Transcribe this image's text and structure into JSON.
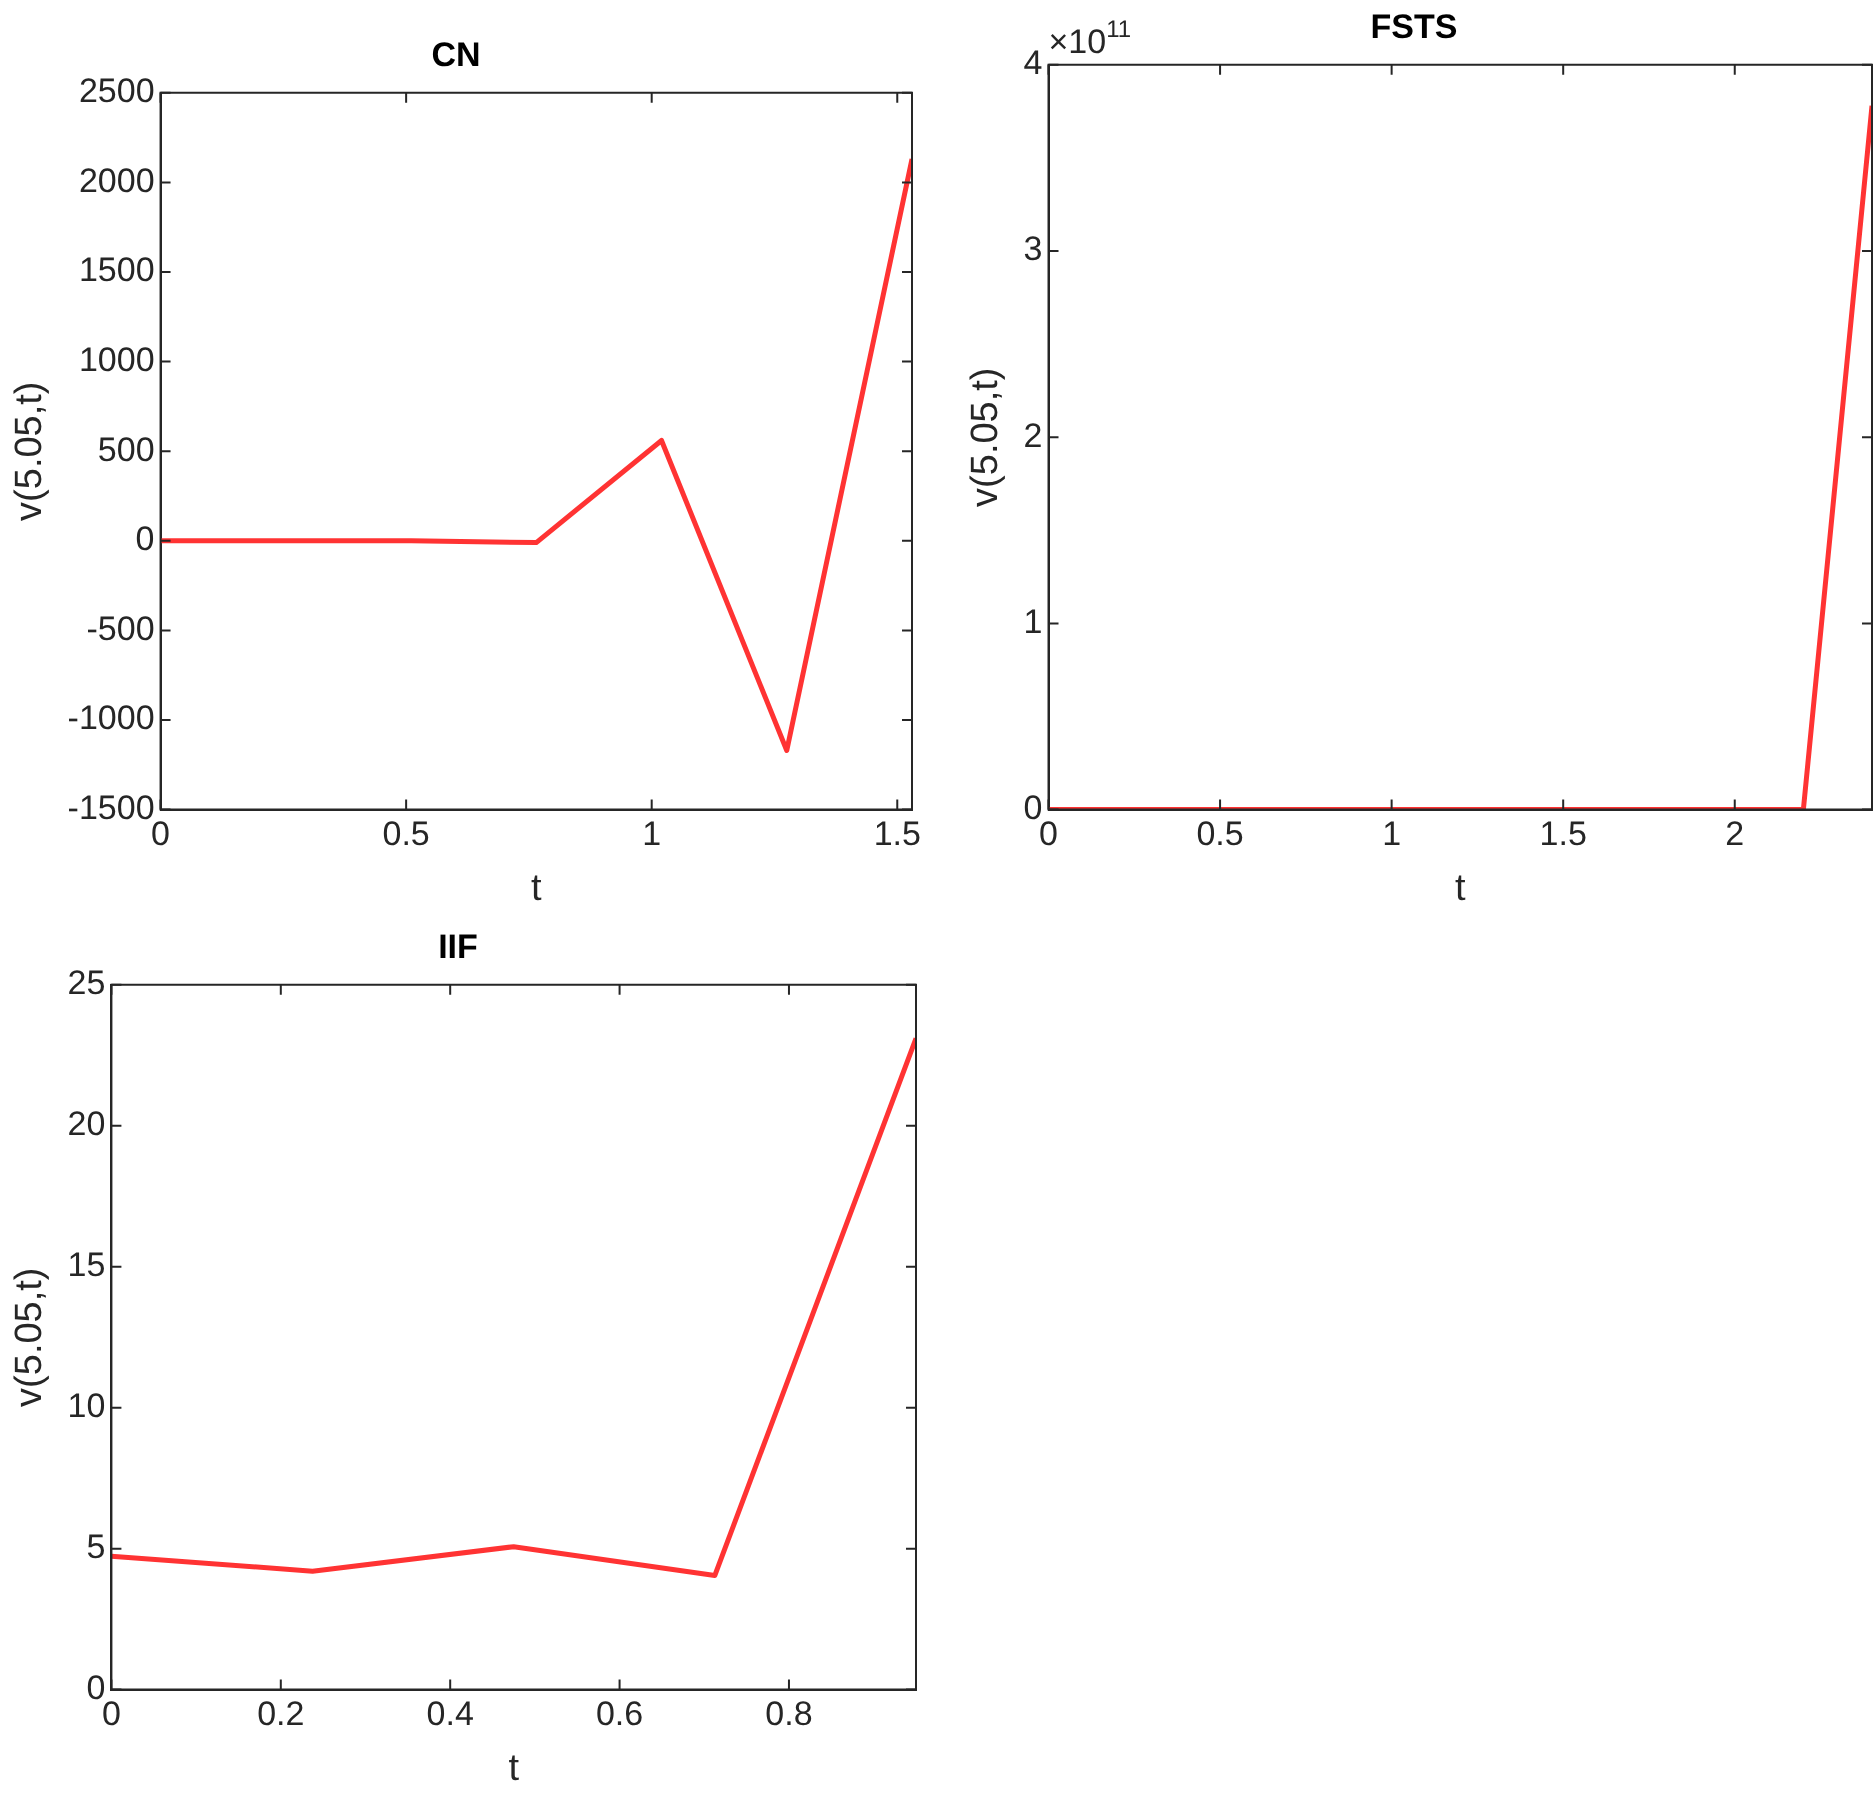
{
  "chart_data": [
    {
      "type": "line",
      "title": "CN",
      "xlabel": "t",
      "ylabel": "v(5.05,t)",
      "x": [
        0,
        0.255,
        0.51,
        0.765,
        1.02,
        1.275,
        1.53
      ],
      "series": [
        {
          "color": "#ff3333",
          "values": [
            0,
            0,
            0,
            -10,
            560,
            -1170,
            2130
          ]
        }
      ],
      "xlim": [
        0,
        1.53
      ],
      "xticks": [
        0,
        0.5,
        1,
        1.5
      ],
      "ylim": [
        -1500,
        2500
      ],
      "yticks": [
        -1500,
        -1000,
        -500,
        0,
        500,
        1000,
        1500,
        2000,
        2500
      ]
    },
    {
      "type": "line",
      "title": "FSTS",
      "xlabel": "t",
      "ylabel": "v(5.05,t)",
      "x": [
        0,
        0.2,
        0.4,
        0.6,
        0.8,
        1,
        1.2,
        1.4,
        1.6,
        1.8,
        2,
        2.2,
        2.4
      ],
      "series": [
        {
          "color": "#ff3333",
          "values": [
            0,
            0,
            0,
            0,
            0,
            0,
            0,
            0,
            0,
            0,
            0,
            0,
            3.78
          ]
        }
      ],
      "xlim": [
        0,
        2.4
      ],
      "xticks": [
        0,
        0.5,
        1,
        1.5,
        2
      ],
      "ylim": [
        0,
        4
      ],
      "yticks": [
        0,
        1,
        2,
        3,
        4
      ],
      "annotations": [
        "×10$^{11}$"
      ]
    },
    {
      "type": "line",
      "title": "IIF",
      "xlabel": "t",
      "ylabel": "v(5.05,t)",
      "x": [
        0,
        0.2375,
        0.475,
        0.7125,
        0.95
      ],
      "series": [
        {
          "color": "#ff3333",
          "values": [
            4.73,
            4.2,
            5.07,
            4.05,
            23.1
          ]
        }
      ],
      "xlim": [
        0,
        0.95
      ],
      "xticks": [
        0,
        0.2,
        0.4,
        0.6,
        0.8
      ],
      "ylim": [
        0,
        25
      ],
      "yticks": [
        0,
        5,
        10,
        15,
        20,
        25
      ]
    }
  ]
}
